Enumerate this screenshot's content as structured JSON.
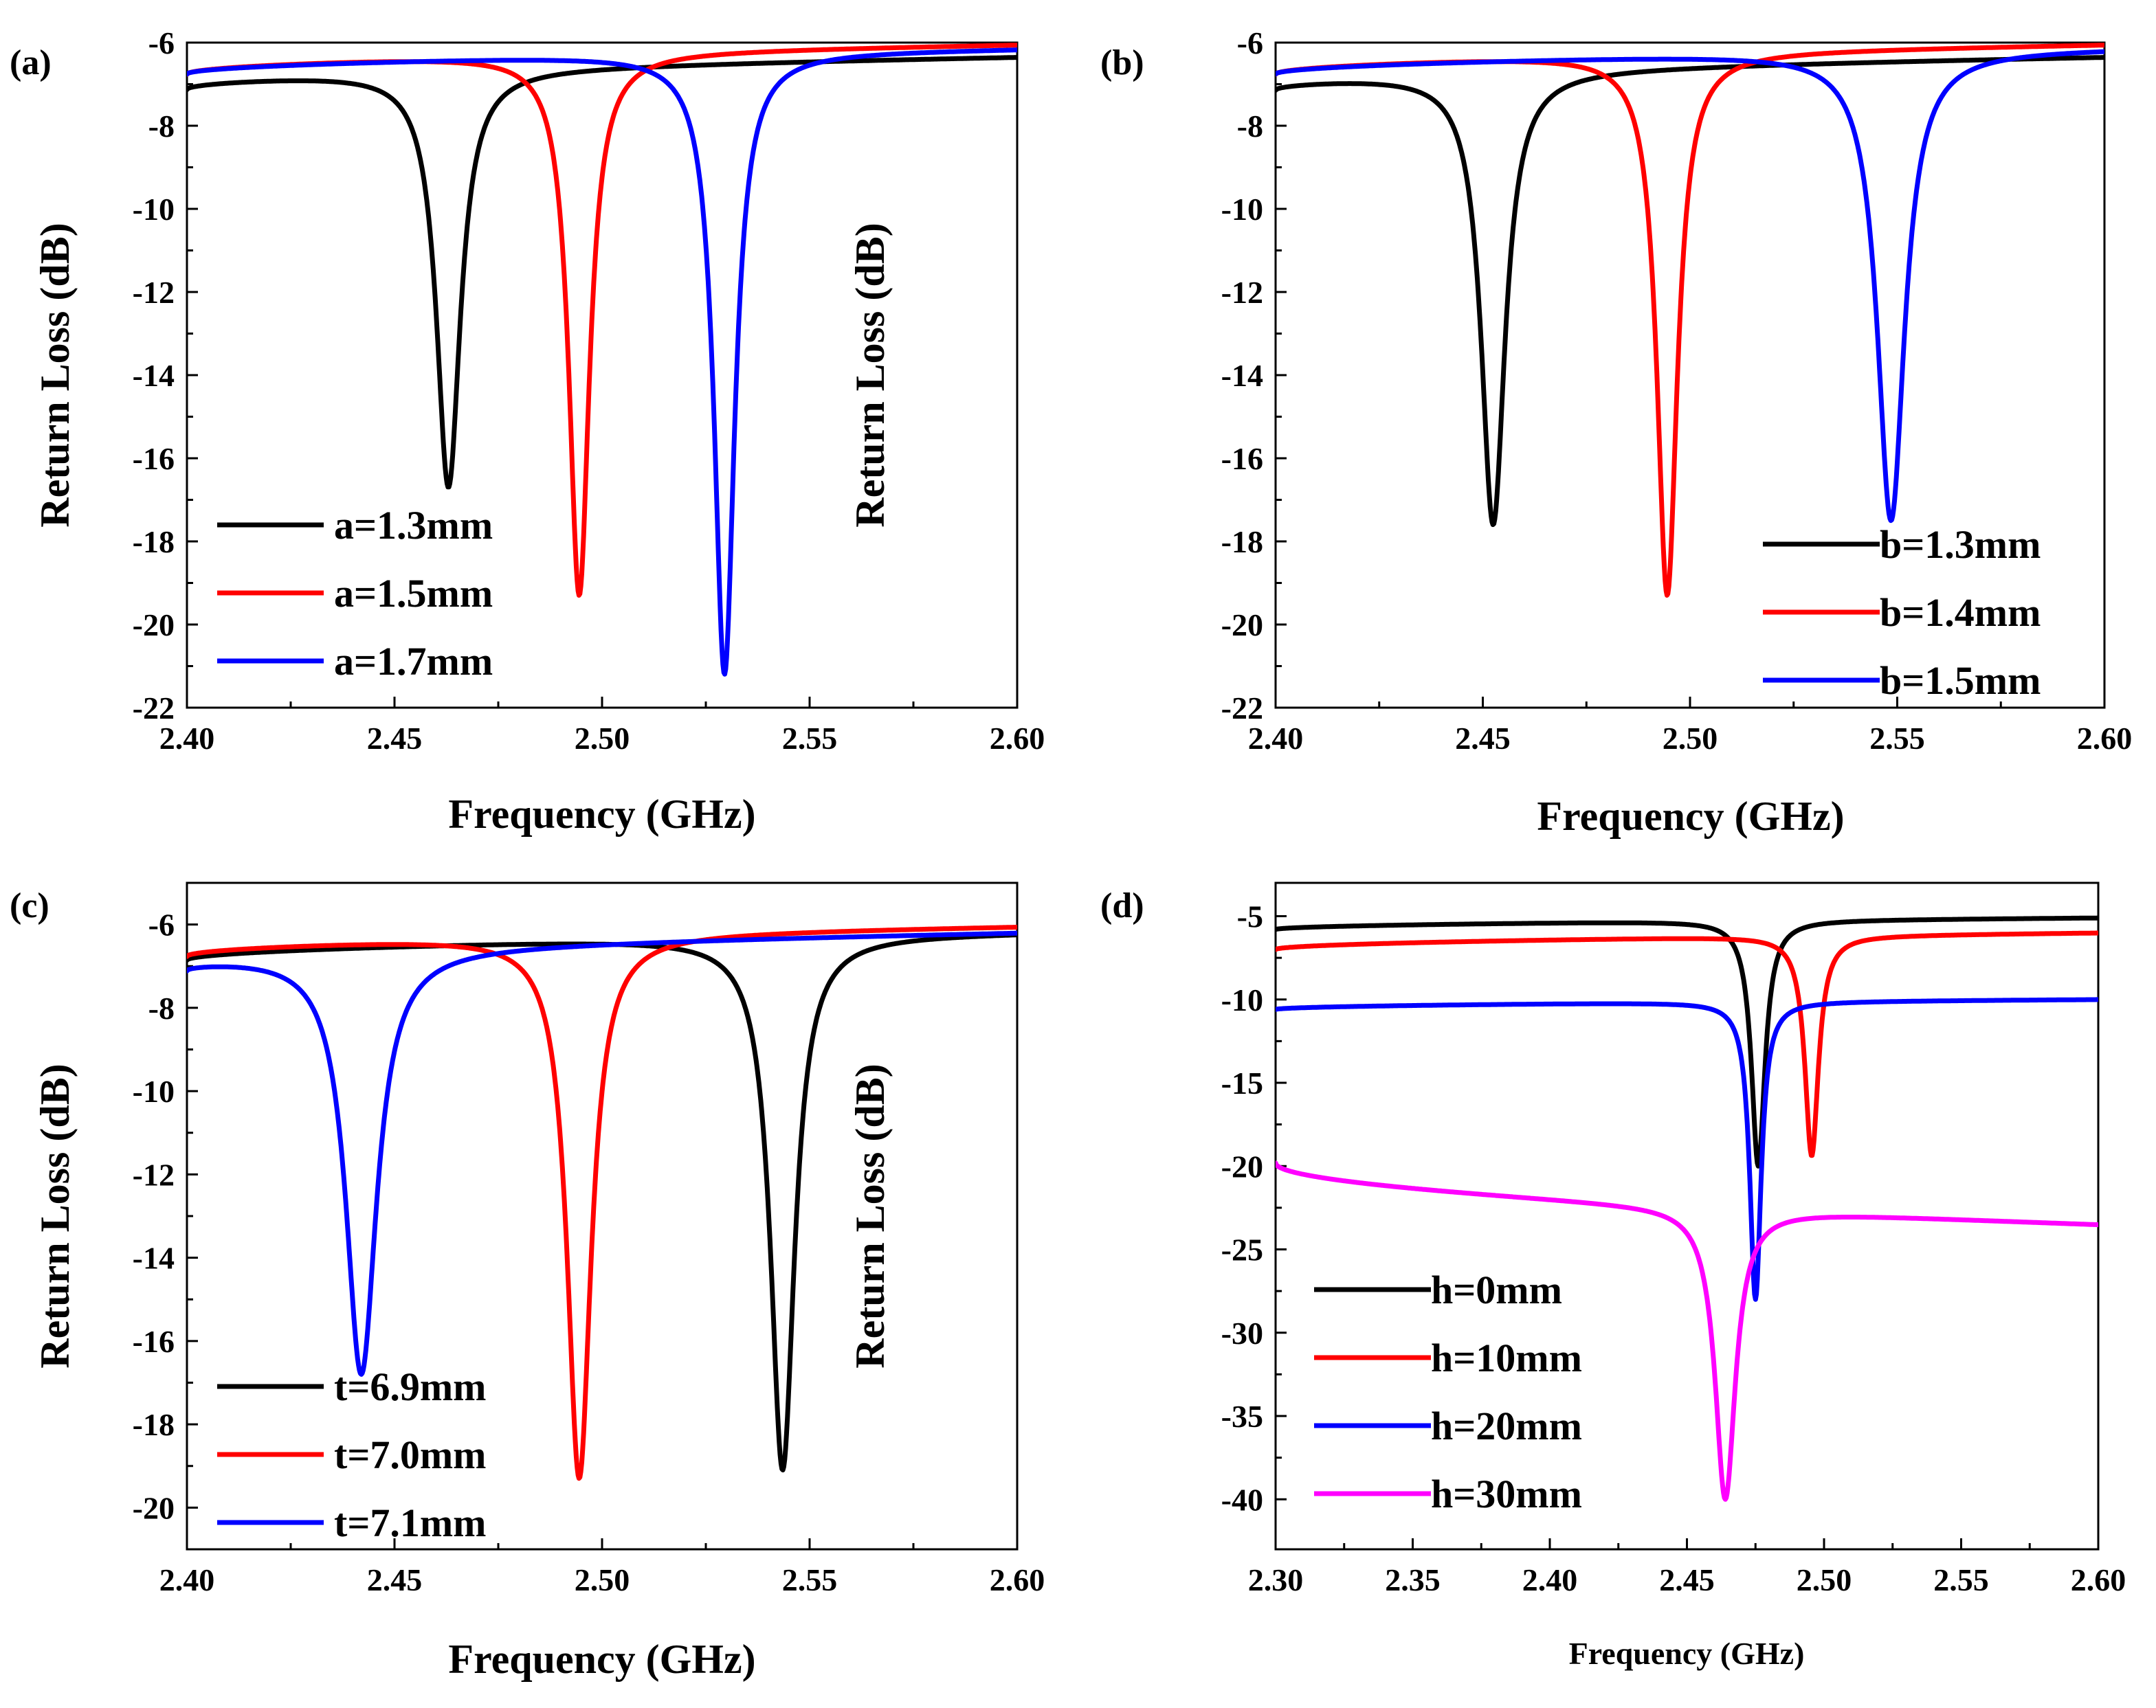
{
  "chart_data": [
    {
      "type": "line",
      "panel_label": "(a)",
      "xlabel": "Frequency (GHz)",
      "ylabel": "Return Loss (dB)",
      "xlim": [
        2.4,
        2.6
      ],
      "ylim": [
        -22,
        -6
      ],
      "xticks": [
        "2.40",
        "2.45",
        "2.50",
        "2.55",
        "2.60"
      ],
      "yticks": [
        "-6",
        "-8",
        "-10",
        "-12",
        "-14",
        "-16",
        "-18",
        "-20",
        "-22"
      ],
      "legend_position": "bottom-left",
      "series": [
        {
          "name": "a=1.3mm",
          "color": "#000000",
          "f0": 2.463,
          "min": -16.7,
          "base_start": -7.1,
          "base_end": -6.35,
          "width": 0.0035
        },
        {
          "name": "a=1.5mm",
          "color": "#ff0000",
          "f0": 2.4945,
          "min": -19.3,
          "base_start": -6.75,
          "base_end": -6.05,
          "width": 0.003
        },
        {
          "name": "a=1.7mm",
          "color": "#0000ff",
          "f0": 2.5295,
          "min": -21.2,
          "base_start": -6.75,
          "base_end": -6.15,
          "width": 0.003
        }
      ]
    },
    {
      "type": "line",
      "panel_label": "(b)",
      "xlabel": "Frequency (GHz)",
      "ylabel": "Return Loss (dB)",
      "xlim": [
        2.4,
        2.6
      ],
      "ylim": [
        -22,
        -6
      ],
      "xticks": [
        "2.40",
        "2.45",
        "2.50",
        "2.55",
        "2.60"
      ],
      "yticks": [
        "-6",
        "-8",
        "-10",
        "-12",
        "-14",
        "-16",
        "-18",
        "-20",
        "-22"
      ],
      "legend_position": "bottom-right",
      "series": [
        {
          "name": "b=1.3mm",
          "color": "#000000",
          "f0": 2.4525,
          "min": -17.6,
          "base_start": -7.1,
          "base_end": -6.35,
          "width": 0.0035
        },
        {
          "name": "b=1.4mm",
          "color": "#ff0000",
          "f0": 2.4945,
          "min": -19.3,
          "base_start": -6.75,
          "base_end": -6.05,
          "width": 0.003
        },
        {
          "name": "b=1.5mm",
          "color": "#0000ff",
          "f0": 2.5485,
          "min": -17.5,
          "base_start": -6.75,
          "base_end": -6.15,
          "width": 0.004
        }
      ]
    },
    {
      "type": "line",
      "panel_label": "(c)",
      "xlabel": "Frequency (GHz)",
      "ylabel": "Return Loss (dB)",
      "xlim": [
        2.4,
        2.6
      ],
      "ylim": [
        -21,
        -5
      ],
      "xticks": [
        "2.40",
        "2.45",
        "2.50",
        "2.55",
        "2.60"
      ],
      "yticks": [
        "-6",
        "-8",
        "-10",
        "-12",
        "-14",
        "-16",
        "-18",
        "-20"
      ],
      "legend_position": "bottom-left",
      "series": [
        {
          "name": "t=6.9mm",
          "color": "#000000",
          "f0": 2.5435,
          "min": -19.1,
          "base_start": -6.85,
          "base_end": -6.2,
          "width": 0.0035
        },
        {
          "name": "t=7.0mm",
          "color": "#ff0000",
          "f0": 2.4945,
          "min": -19.3,
          "base_start": -6.75,
          "base_end": -6.05,
          "width": 0.0035
        },
        {
          "name": "t=7.1mm",
          "color": "#0000ff",
          "f0": 2.442,
          "min": -16.8,
          "base_start": -7.0,
          "base_end": -6.2,
          "width": 0.0045
        }
      ]
    },
    {
      "type": "line",
      "panel_label": "(d)",
      "xlabel": "Frequency (GHz)",
      "ylabel": "Return Loss (dB)",
      "xlim": [
        2.3,
        2.6
      ],
      "ylim": [
        -43,
        -3
      ],
      "xticks": [
        "2.30",
        "2.35",
        "2.40",
        "2.45",
        "2.50",
        "2.55",
        "2.60"
      ],
      "yticks": [
        "-5",
        "-10",
        "-15",
        "-20",
        "-25",
        "-30",
        "-35",
        "-40"
      ],
      "legend_position": "bottom-left",
      "series": [
        {
          "name": "h=0mm",
          "color": "#000000",
          "f0": 2.476,
          "min": -20.0,
          "base_start": -5.8,
          "base_end": -5.1,
          "width": 0.003
        },
        {
          "name": "h=10mm",
          "color": "#ff0000",
          "f0": 2.4955,
          "min": -19.4,
          "base_start": -7.0,
          "base_end": -6.0,
          "width": 0.003
        },
        {
          "name": "h=20mm",
          "color": "#0000ff",
          "f0": 2.475,
          "min": -28.0,
          "base_start": -10.6,
          "base_end": -10.0,
          "width": 0.0025
        },
        {
          "name": "h=30mm",
          "color": "#ff00ff",
          "f0": 2.464,
          "min": -40.0,
          "base_start": -19.8,
          "base_end": -23.5,
          "width": 0.0045
        }
      ]
    }
  ]
}
